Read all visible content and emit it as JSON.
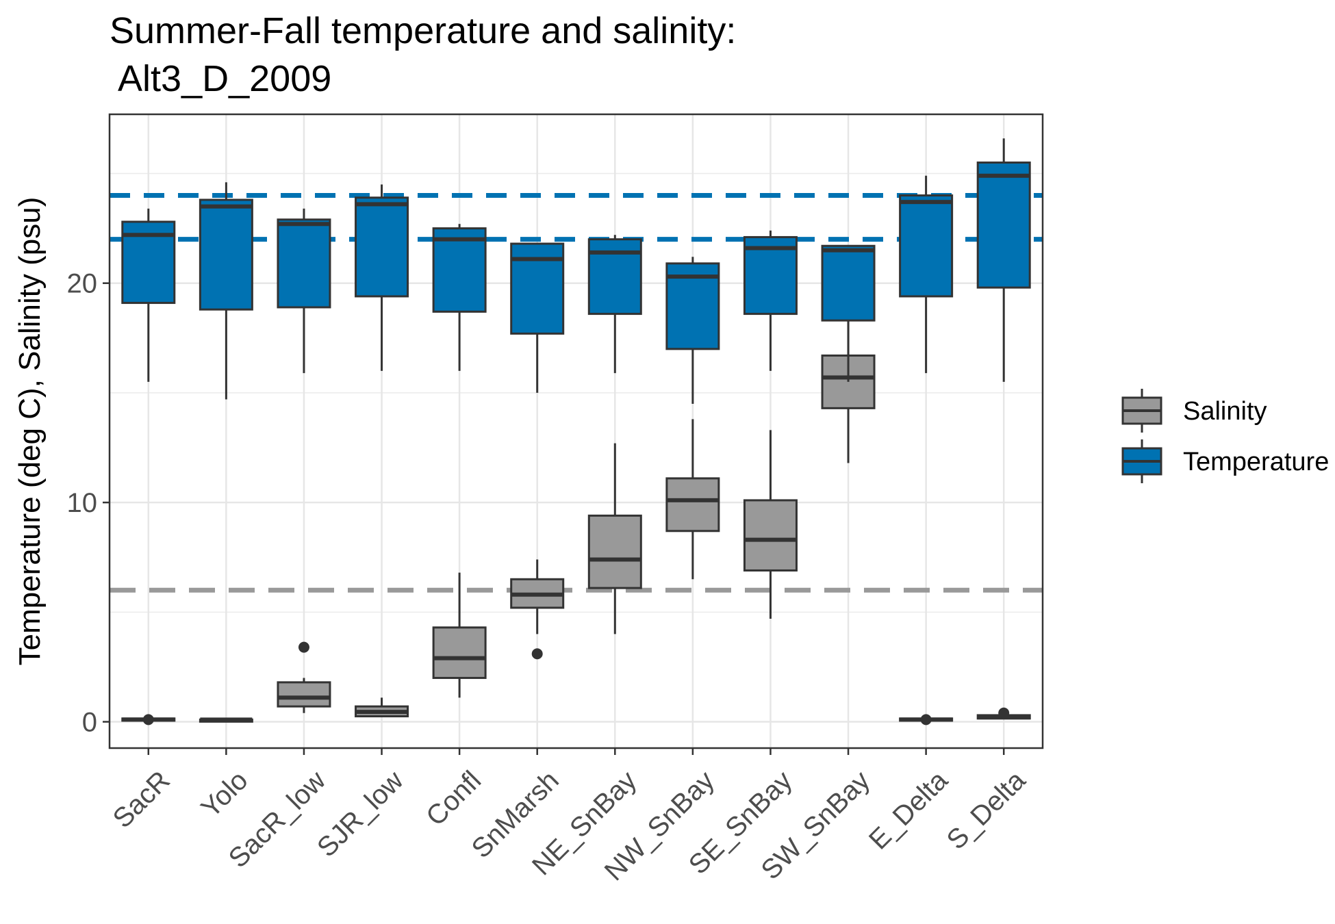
{
  "chart_data": {
    "type": "boxplot",
    "title_line1": "Summer-Fall temperature and salinity:",
    "title_line2": " Alt3_D_2009",
    "xlabel": "",
    "ylabel": "Temperature (deg C), Salinity (psu)",
    "ylim": [
      -1.2,
      27.7
    ],
    "yticks": [
      0,
      10,
      20
    ],
    "grid": true,
    "legend_position": "right",
    "categories": [
      "SacR",
      "Yolo",
      "SacR_low",
      "SJR_low",
      "Confl",
      "SnMarsh",
      "NE_SnBay",
      "NW_SnBay",
      "SE_SnBay",
      "SW_SnBay",
      "E_Delta",
      "S_Delta"
    ],
    "reference_lines": [
      {
        "series": "Temperature",
        "y": 24.0
      },
      {
        "series": "Temperature",
        "y": 22.0
      },
      {
        "series": "Salinity",
        "y": 6.0
      }
    ],
    "series": [
      {
        "name": "Salinity",
        "color": "#999999",
        "boxes": [
          {
            "min": 0.05,
            "q1": 0.05,
            "median": 0.1,
            "q3": 0.15,
            "max": 0.15,
            "outliers": [
              0.1
            ]
          },
          {
            "min": 0.05,
            "q1": 0.05,
            "median": 0.1,
            "q3": 0.1,
            "max": 0.1,
            "outliers": []
          },
          {
            "min": 0.4,
            "q1": 0.7,
            "median": 1.1,
            "q3": 1.8,
            "max": 2.0,
            "outliers": [
              3.4
            ]
          },
          {
            "min": 0.25,
            "q1": 0.25,
            "median": 0.45,
            "q3": 0.7,
            "max": 1.1,
            "outliers": []
          },
          {
            "min": 1.1,
            "q1": 2.0,
            "median": 2.9,
            "q3": 4.3,
            "max": 6.8,
            "outliers": []
          },
          {
            "min": 4.0,
            "q1": 5.2,
            "median": 5.8,
            "q3": 6.5,
            "max": 7.4,
            "outliers": [
              3.1
            ]
          },
          {
            "min": 4.0,
            "q1": 6.1,
            "median": 7.4,
            "q3": 9.4,
            "max": 12.7,
            "outliers": []
          },
          {
            "min": 6.5,
            "q1": 8.7,
            "median": 10.1,
            "q3": 11.1,
            "max": 13.8,
            "outliers": []
          },
          {
            "min": 4.7,
            "q1": 6.9,
            "median": 8.3,
            "q3": 10.1,
            "max": 13.3,
            "outliers": []
          },
          {
            "min": 11.8,
            "q1": 14.3,
            "median": 15.7,
            "q3": 16.7,
            "max": 19.4,
            "outliers": []
          },
          {
            "min": 0.05,
            "q1": 0.05,
            "median": 0.1,
            "q3": 0.15,
            "max": 0.15,
            "outliers": [
              0.1
            ]
          },
          {
            "min": 0.15,
            "q1": 0.15,
            "median": 0.2,
            "q3": 0.3,
            "max": 0.3,
            "outliers": [
              0.4
            ]
          }
        ]
      },
      {
        "name": "Temperature",
        "color": "#0072B2",
        "boxes": [
          {
            "min": 15.5,
            "q1": 19.1,
            "median": 22.2,
            "q3": 22.8,
            "max": 23.4,
            "outliers": []
          },
          {
            "min": 14.7,
            "q1": 18.8,
            "median": 23.5,
            "q3": 23.8,
            "max": 24.6,
            "outliers": []
          },
          {
            "min": 15.9,
            "q1": 18.9,
            "median": 22.7,
            "q3": 22.9,
            "max": 23.4,
            "outliers": []
          },
          {
            "min": 16.0,
            "q1": 19.4,
            "median": 23.6,
            "q3": 23.9,
            "max": 24.5,
            "outliers": []
          },
          {
            "min": 16.0,
            "q1": 18.7,
            "median": 22.0,
            "q3": 22.5,
            "max": 22.7,
            "outliers": []
          },
          {
            "min": 15.0,
            "q1": 17.7,
            "median": 21.1,
            "q3": 21.8,
            "max": 21.8,
            "outliers": []
          },
          {
            "min": 15.9,
            "q1": 18.6,
            "median": 21.4,
            "q3": 22.0,
            "max": 22.2,
            "outliers": []
          },
          {
            "min": 14.5,
            "q1": 17.0,
            "median": 20.3,
            "q3": 20.9,
            "max": 21.2,
            "outliers": []
          },
          {
            "min": 16.0,
            "q1": 18.6,
            "median": 21.6,
            "q3": 22.1,
            "max": 22.4,
            "outliers": []
          },
          {
            "min": 15.5,
            "q1": 18.3,
            "median": 21.5,
            "q3": 21.7,
            "max": 21.7,
            "outliers": []
          },
          {
            "min": 15.9,
            "q1": 19.4,
            "median": 23.7,
            "q3": 24.0,
            "max": 24.9,
            "outliers": []
          },
          {
            "min": 15.5,
            "q1": 19.8,
            "median": 24.9,
            "q3": 25.5,
            "max": 26.6,
            "outliers": []
          }
        ]
      }
    ]
  }
}
